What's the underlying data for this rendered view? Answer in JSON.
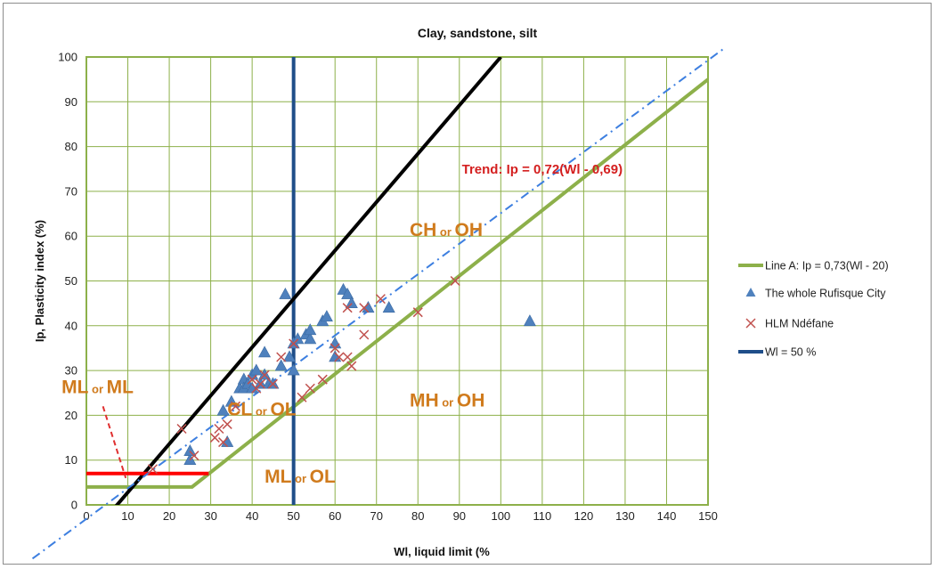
{
  "chart_data": {
    "type": "scatter",
    "title": "Clay, sandstone, silt",
    "xlabel": "Wl, liquid limit (%",
    "ylabel": "Ip, Plasticity index (%)",
    "xlim": [
      0,
      150
    ],
    "ylim": [
      0,
      100
    ],
    "x_ticks": [
      "0",
      "10",
      "20",
      "30",
      "40",
      "50",
      "60",
      "70",
      "80",
      "90",
      "100",
      "110",
      "120",
      "130",
      "140",
      "150"
    ],
    "y_ticks": [
      "0",
      "10",
      "20",
      "30",
      "40",
      "50",
      "60",
      "70",
      "80",
      "90",
      "100"
    ],
    "grid": true,
    "legend_position": "right",
    "series": [
      {
        "name": "Line A: Ip = 0,73(Wl - 20)",
        "kind": "line",
        "color": "#8db04a",
        "x": [
          0,
          25.5,
          150
        ],
        "y": [
          4,
          4,
          95
        ]
      },
      {
        "name": "The whole Rufisque City",
        "kind": "scatter",
        "marker": "triangle",
        "color": "#4f81bd",
        "x": [
          25,
          25,
          33,
          34,
          35,
          37,
          38,
          38,
          39,
          40,
          40,
          41,
          42,
          43,
          43,
          44,
          45,
          47,
          48,
          49,
          50,
          50,
          51,
          53,
          54,
          54,
          57,
          58,
          60,
          60,
          62,
          63,
          64,
          68,
          73,
          107
        ],
        "y": [
          10,
          12,
          21,
          14,
          23,
          26,
          28,
          26,
          27,
          26,
          29,
          30,
          27,
          34,
          29,
          27,
          27,
          31,
          47,
          33,
          30,
          36,
          37,
          38,
          37,
          39,
          41,
          42,
          33,
          36,
          48,
          47,
          45,
          44,
          44,
          41
        ]
      },
      {
        "name": "HLM Ndéfane",
        "kind": "scatter",
        "marker": "x",
        "color": "#c0504d",
        "x": [
          16,
          23,
          26,
          31,
          32,
          33,
          34,
          36,
          40,
          41,
          42,
          43,
          45,
          47,
          50,
          52,
          54,
          57,
          60,
          61,
          63,
          63,
          64,
          67,
          67,
          71,
          80,
          89
        ],
        "y": [
          8,
          17,
          11,
          15,
          17,
          14,
          18,
          22,
          28,
          26,
          27,
          29,
          27,
          33,
          36,
          24,
          26,
          28,
          35,
          33,
          44,
          33,
          31,
          38,
          44,
          46,
          43,
          50
        ]
      },
      {
        "name": "Wl = 50 %",
        "kind": "line",
        "color": "#1f4e89",
        "x": [
          50,
          50
        ],
        "y": [
          0,
          100
        ]
      },
      {
        "name": "",
        "kind": "line",
        "color": "#000000",
        "x": [
          0,
          100
        ],
        "y": [
          -8,
          100
        ]
      },
      {
        "name": "",
        "kind": "line",
        "color": "#ff0000",
        "x": [
          0,
          29.5
        ],
        "y": [
          7,
          7
        ]
      },
      {
        "name": "",
        "kind": "dashdot-line",
        "color": "#3d7fe0",
        "x": [
          -13,
          154
        ],
        "y": [
          -12,
          102
        ]
      }
    ],
    "annotations": {
      "trend": {
        "text": "Trend: Ip = 0,72(Wl - 0,69)",
        "x": 110,
        "y": 74
      },
      "zones": [
        {
          "id": "ch",
          "big1": "CH",
          "small": " or ",
          "big2": "OH",
          "x": 78,
          "y": 60
        },
        {
          "id": "mh",
          "big1": "MH",
          "small": " or ",
          "big2": "OH",
          "x": 78,
          "y": 22
        },
        {
          "id": "cl",
          "big1": "CL",
          "small": " or ",
          "big2": "OL",
          "x": 34,
          "y": 20
        },
        {
          "id": "ml-ol",
          "big1": "ML",
          "small": " or ",
          "big2": "OL",
          "x": 43,
          "y": 5
        },
        {
          "id": "ml-ml",
          "big1": "ML",
          "small": " or ",
          "big2": "ML",
          "x": -6,
          "y": 25
        }
      ],
      "pointer": {
        "x1": 4,
        "y1": 22,
        "x2": 9.5,
        "y2": 6,
        "color": "#e03030"
      }
    }
  }
}
